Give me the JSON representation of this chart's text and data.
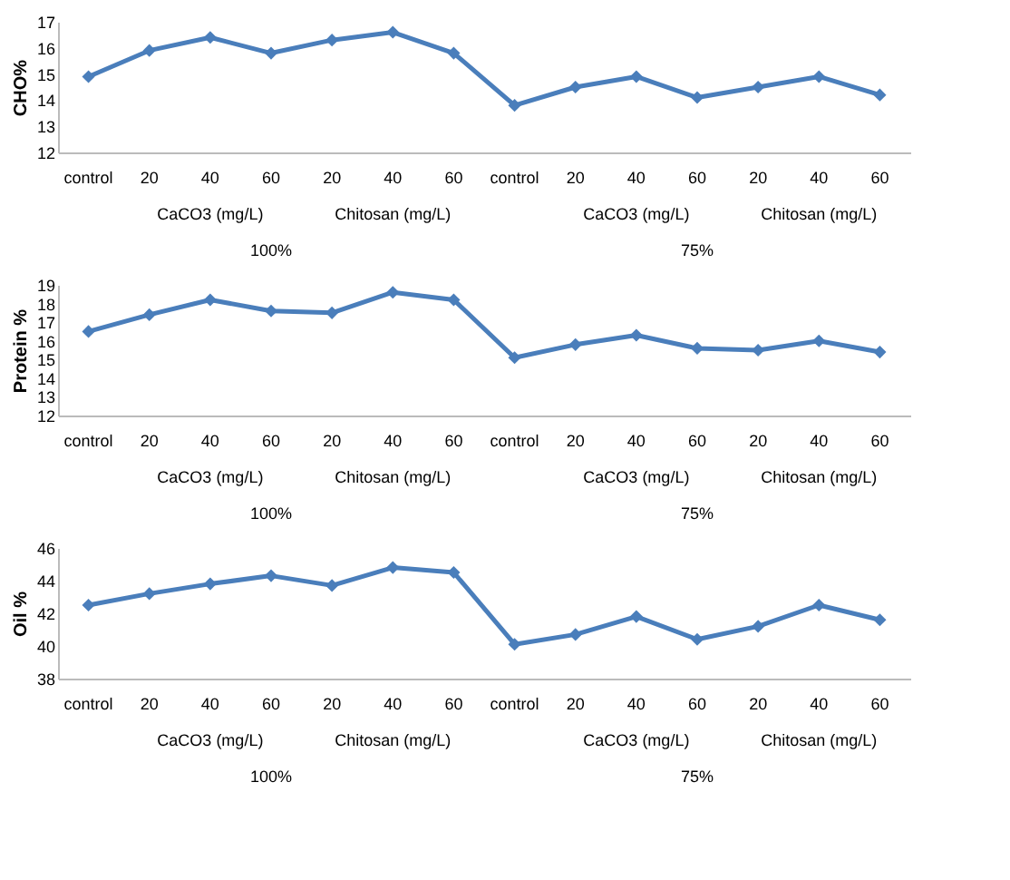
{
  "chart_data": [
    {
      "type": "line",
      "ylabel": "CHO%",
      "categories": [
        "control",
        "20",
        "40",
        "60",
        "20",
        "40",
        "60",
        "control",
        "20",
        "40",
        "60",
        "20",
        "40",
        "60"
      ],
      "color": "#4a7ebb",
      "marker": "diamond",
      "grid": false,
      "ylim": [
        12,
        17
      ],
      "yticks": [
        12,
        13,
        14,
        15,
        16,
        17
      ],
      "values": [
        14.9,
        15.9,
        16.4,
        15.8,
        16.3,
        16.6,
        15.8,
        13.8,
        14.5,
        14.9,
        14.1,
        14.5,
        14.9,
        14.2
      ],
      "annotations": [
        "CaCO3  (mg/L)",
        "Chitosan (mg/L)",
        "CaCO3  (mg/L)",
        "Chitosan (mg/L)",
        "100%",
        "75%"
      ]
    },
    {
      "type": "line",
      "ylabel": "Protein %",
      "categories": [
        "control",
        "20",
        "40",
        "60",
        "20",
        "40",
        "60",
        "control",
        "20",
        "40",
        "60",
        "20",
        "40",
        "60"
      ],
      "color": "#4a7ebb",
      "marker": "diamond",
      "grid": false,
      "ylim": [
        12,
        19
      ],
      "yticks": [
        12,
        13,
        14,
        15,
        16,
        17,
        18,
        19
      ],
      "values": [
        16.5,
        17.4,
        18.2,
        17.6,
        17.5,
        18.6,
        18.2,
        15.1,
        15.8,
        16.3,
        15.6,
        15.5,
        16.0,
        15.4
      ],
      "annotations": [
        "CaCO3  (mg/L)",
        "Chitosan (mg/L)",
        "CaCO3  (mg/L)",
        "Chitosan (mg/L)",
        "100%",
        "75%"
      ]
    },
    {
      "type": "line",
      "ylabel": "Oil %",
      "categories": [
        "control",
        "20",
        "40",
        "60",
        "20",
        "40",
        "60",
        "control",
        "20",
        "40",
        "60",
        "20",
        "40",
        "60"
      ],
      "color": "#4a7ebb",
      "marker": "diamond",
      "grid": false,
      "ylim": [
        38,
        46
      ],
      "yticks": [
        38,
        40,
        42,
        44,
        46
      ],
      "values": [
        42.5,
        43.2,
        43.8,
        44.3,
        43.7,
        44.8,
        44.5,
        40.1,
        40.7,
        41.8,
        40.4,
        41.2,
        42.5,
        41.6
      ],
      "annotations": [
        "CaCO3  (mg/L)",
        "Chitosan (mg/L)",
        "CaCO3  (mg/L)",
        "Chitosan (mg/L)",
        "100%",
        "75%"
      ]
    }
  ]
}
